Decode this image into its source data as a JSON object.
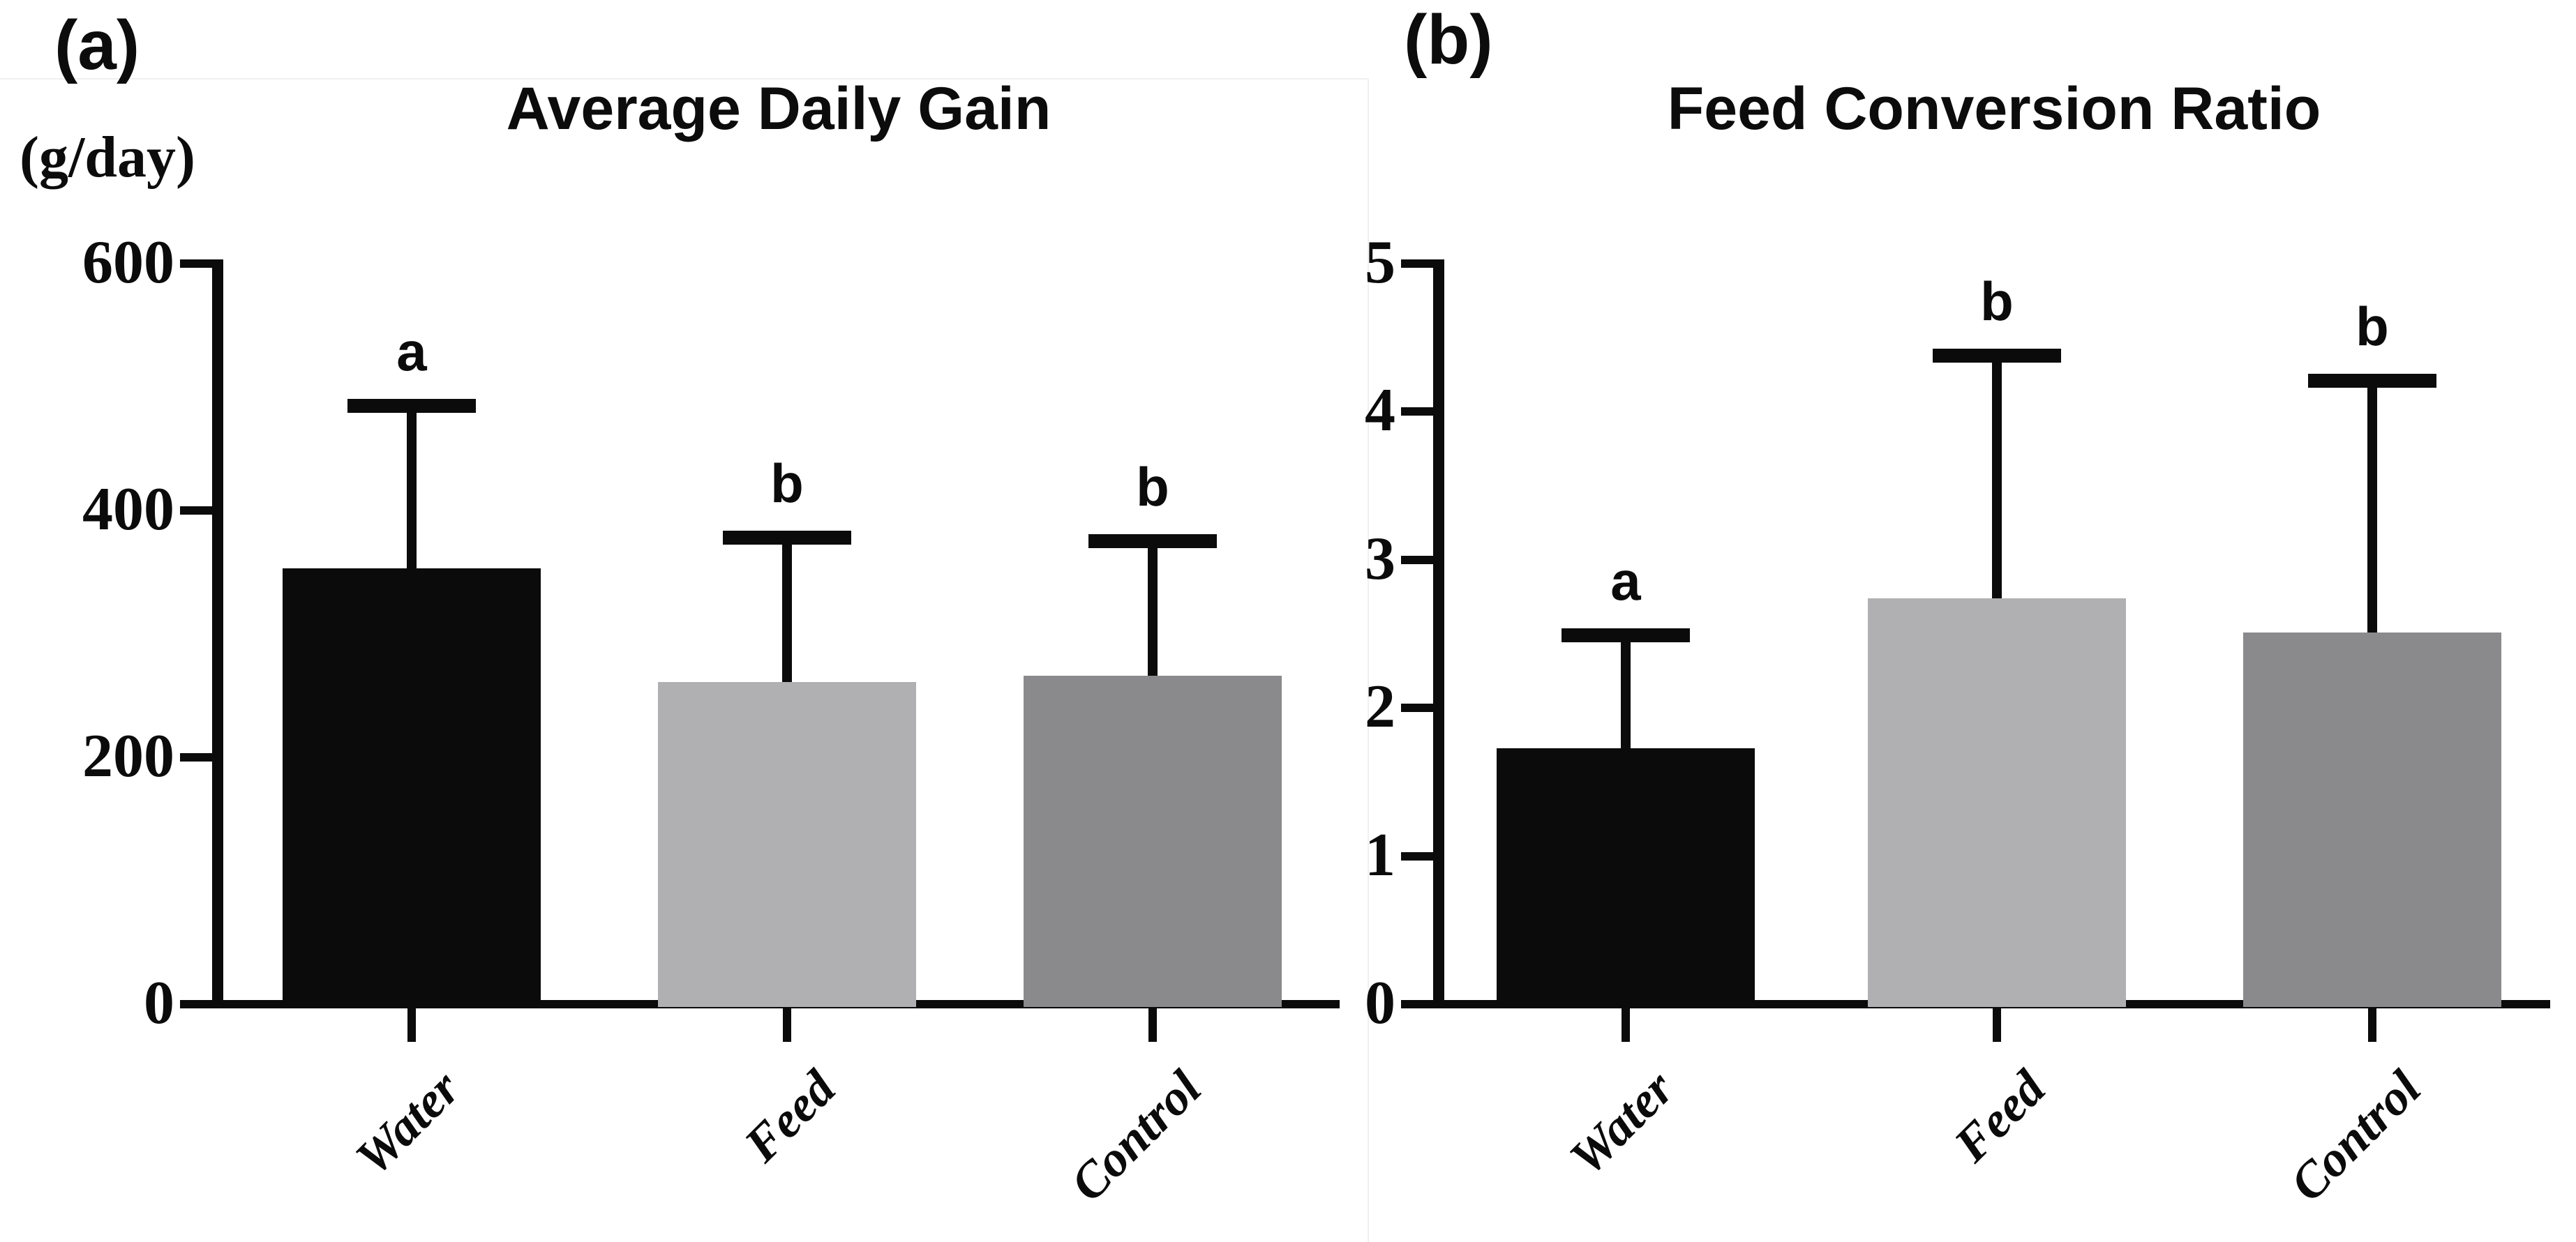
{
  "figure": {
    "panel_a_label": "(a)",
    "panel_b_label": "(b)"
  },
  "chart_data": [
    {
      "type": "bar",
      "panel": "a",
      "title": "Average Daily Gain",
      "ylabel": "(g/day)",
      "categories": [
        "Water",
        "Feed",
        "Control"
      ],
      "values": [
        353,
        261,
        266
      ],
      "error_top": [
        485,
        378,
        375
      ],
      "sig_letters": [
        "a",
        "b",
        "b"
      ],
      "yticks": [
        600,
        400,
        200,
        0
      ],
      "ylim": [
        0,
        600
      ],
      "grid": "off",
      "legend": "none",
      "bar_colors": [
        "#0b0b0b",
        "#b0b0b3",
        "#8a8a8d"
      ]
    },
    {
      "type": "bar",
      "panel": "b",
      "title": "Feed Conversion Ratio",
      "ylabel": "",
      "categories": [
        "Water",
        "Feed",
        "Control"
      ],
      "values": [
        1.73,
        2.74,
        2.51
      ],
      "error_top": [
        2.49,
        4.38,
        4.21
      ],
      "sig_letters": [
        "a",
        "b",
        "b"
      ],
      "yticks": [
        5,
        4,
        3,
        2,
        1,
        0
      ],
      "ylim": [
        0,
        5
      ],
      "grid": "off",
      "legend": "none",
      "bar_colors": [
        "#0b0b0b",
        "#b0b0b3",
        "#8a8a8d"
      ]
    }
  ]
}
